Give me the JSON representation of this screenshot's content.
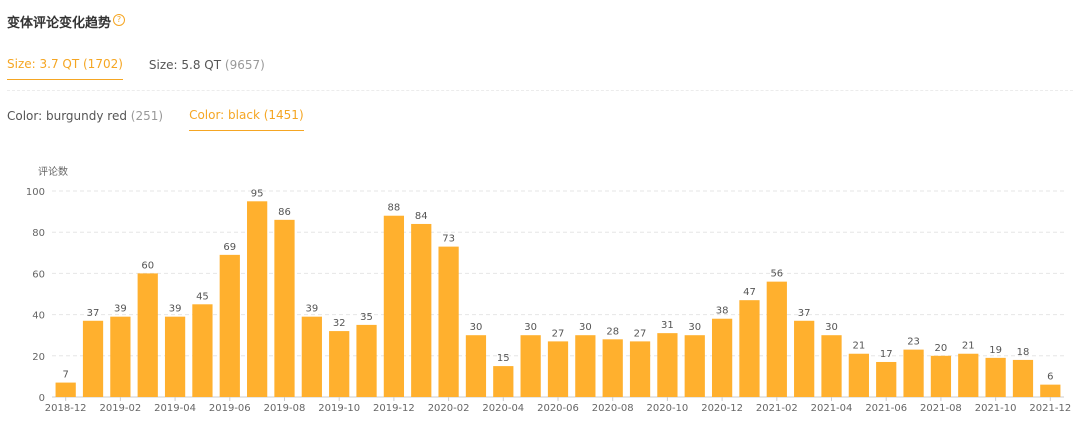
{
  "header": {
    "title": "变体评论变化趋势",
    "help_icon": "question-circle-icon"
  },
  "size_tabs": [
    {
      "label": "Size: 3.7 QT",
      "count": "(1702)",
      "active": true
    },
    {
      "label": "Size: 5.8 QT",
      "count": "(9657)",
      "active": false
    }
  ],
  "color_tabs": [
    {
      "label": "Color: burgundy red",
      "count": "(251)",
      "active": false
    },
    {
      "label": "Color: black",
      "count": "(1451)",
      "active": true
    }
  ],
  "colors": {
    "accent": "#f5a623",
    "bar": "#ffb02e",
    "grid": "#e6e6e6"
  },
  "chart_data": {
    "type": "bar",
    "ylabel": "评论数",
    "ylim": [
      0,
      100
    ],
    "yticks": [
      0,
      20,
      40,
      60,
      80,
      100
    ],
    "grid": true,
    "categories": [
      "2018-12",
      "2019-01",
      "2019-02",
      "2019-03",
      "2019-04",
      "2019-05",
      "2019-06",
      "2019-07",
      "2019-08",
      "2019-09",
      "2019-10",
      "2019-11",
      "2019-12",
      "2020-01",
      "2020-02",
      "2020-03",
      "2020-04",
      "2020-05",
      "2020-06",
      "2020-07",
      "2020-08",
      "2020-09",
      "2020-10",
      "2020-11",
      "2020-12",
      "2021-01",
      "2021-02",
      "2021-03",
      "2021-04",
      "2021-05",
      "2021-06",
      "2021-07",
      "2021-08",
      "2021-09",
      "2021-10",
      "2021-11",
      "2021-12"
    ],
    "xtick_labels": [
      "2018-12",
      "2019-02",
      "2019-04",
      "2019-06",
      "2019-08",
      "2019-10",
      "2019-12",
      "2020-02",
      "2020-04",
      "2020-06",
      "2020-08",
      "2020-10",
      "2020-12",
      "2021-02",
      "2021-04",
      "2021-06",
      "2021-08",
      "2021-10",
      "2021-12"
    ],
    "values": [
      7,
      37,
      39,
      60,
      39,
      45,
      69,
      95,
      86,
      39,
      32,
      35,
      88,
      84,
      73,
      30,
      15,
      30,
      27,
      30,
      28,
      27,
      31,
      30,
      38,
      47,
      56,
      37,
      30,
      21,
      17,
      23,
      20,
      21,
      19,
      18,
      6
    ]
  }
}
